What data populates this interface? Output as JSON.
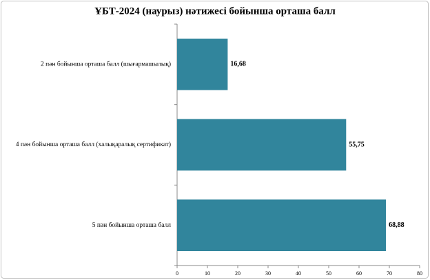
{
  "chart_data": {
    "type": "barh",
    "title": "ҰБТ-2024 (наурыз) нәтижесі бойынша орташа балл",
    "categories": [
      "2 пән бойынша орташа балл (шығармашылық)",
      "4 пән бойынша орташа балл (халықаралық сертификат)",
      "5 пән бойынша орташа балл"
    ],
    "values": [
      16.68,
      55.75,
      68.88
    ],
    "value_labels": [
      "16,68",
      "55,75",
      "68,88"
    ],
    "color": "#31859c",
    "xlim": [
      0,
      80
    ],
    "xticks": [
      0,
      10,
      20,
      30,
      40,
      50,
      60,
      70,
      80
    ],
    "grid": false
  }
}
